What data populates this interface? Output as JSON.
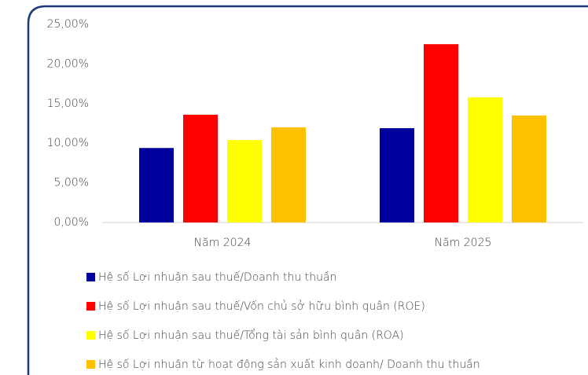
{
  "chart_data": {
    "type": "bar",
    "categories": [
      "Năm 2024",
      "Năm 2025"
    ],
    "series": [
      {
        "name": "Hệ số Lợi nhuận sau thuế/Doanh thu thuần",
        "color": "#00009c",
        "values": [
          9.4,
          11.9
        ]
      },
      {
        "name": "Hệ số Lợi nhuận sau thuế/Vốn chủ sở hữu bình quân (ROE)",
        "color": "#ff0000",
        "values": [
          13.6,
          22.5
        ]
      },
      {
        "name": "Hệ số Lợi nhuận sau thuế/Tổng tài sản bình quân (ROA)",
        "color": "#ffff00",
        "values": [
          10.4,
          15.8
        ]
      },
      {
        "name": "Hệ số Lợi nhuận từ hoạt động sản xuất kinh doanh/ Doanh thu thuần",
        "color": "#ffc000",
        "values": [
          12.0,
          13.5
        ]
      }
    ],
    "ylim": [
      0,
      25
    ],
    "yticks": [
      {
        "value": 0,
        "label": "0,00%"
      },
      {
        "value": 5,
        "label": "5,00%"
      },
      {
        "value": 10,
        "label": "10,00%"
      },
      {
        "value": 15,
        "label": "15,00%"
      },
      {
        "value": 20,
        "label": "20,00%"
      },
      {
        "value": 25,
        "label": "25,00%"
      }
    ],
    "legend": "bottom"
  }
}
